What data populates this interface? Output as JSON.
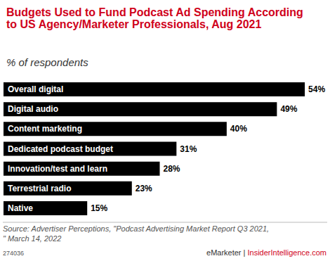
{
  "chart_data": {
    "type": "bar",
    "orientation": "horizontal",
    "title": "Budgets Used to Fund Podcast Ad Spending According to US Agency/Marketer Professionals, Aug 2021",
    "subtitle": "% of respondents",
    "categories": [
      "Overall digital",
      "Digital audio",
      "Content marketing",
      "Dedicated podcast budget",
      "Innovation/test and learn",
      "Terrestrial radio",
      "Native"
    ],
    "values": [
      54,
      49,
      40,
      31,
      28,
      23,
      15
    ],
    "value_labels": [
      "54%",
      "49%",
      "40%",
      "31%",
      "28%",
      "23%",
      "15%"
    ],
    "data_labels": true,
    "color": "#000000",
    "xlim": [
      0,
      56
    ],
    "tick_labels": "y",
    "grid": false,
    "source": "Source: Advertiser Perceptions, \"Podcast Advertising Market Report Q3 2021,\" March 14, 2022",
    "chart_id": "274036",
    "brand": "eMarketer | InsiderIntelligence.com"
  }
}
